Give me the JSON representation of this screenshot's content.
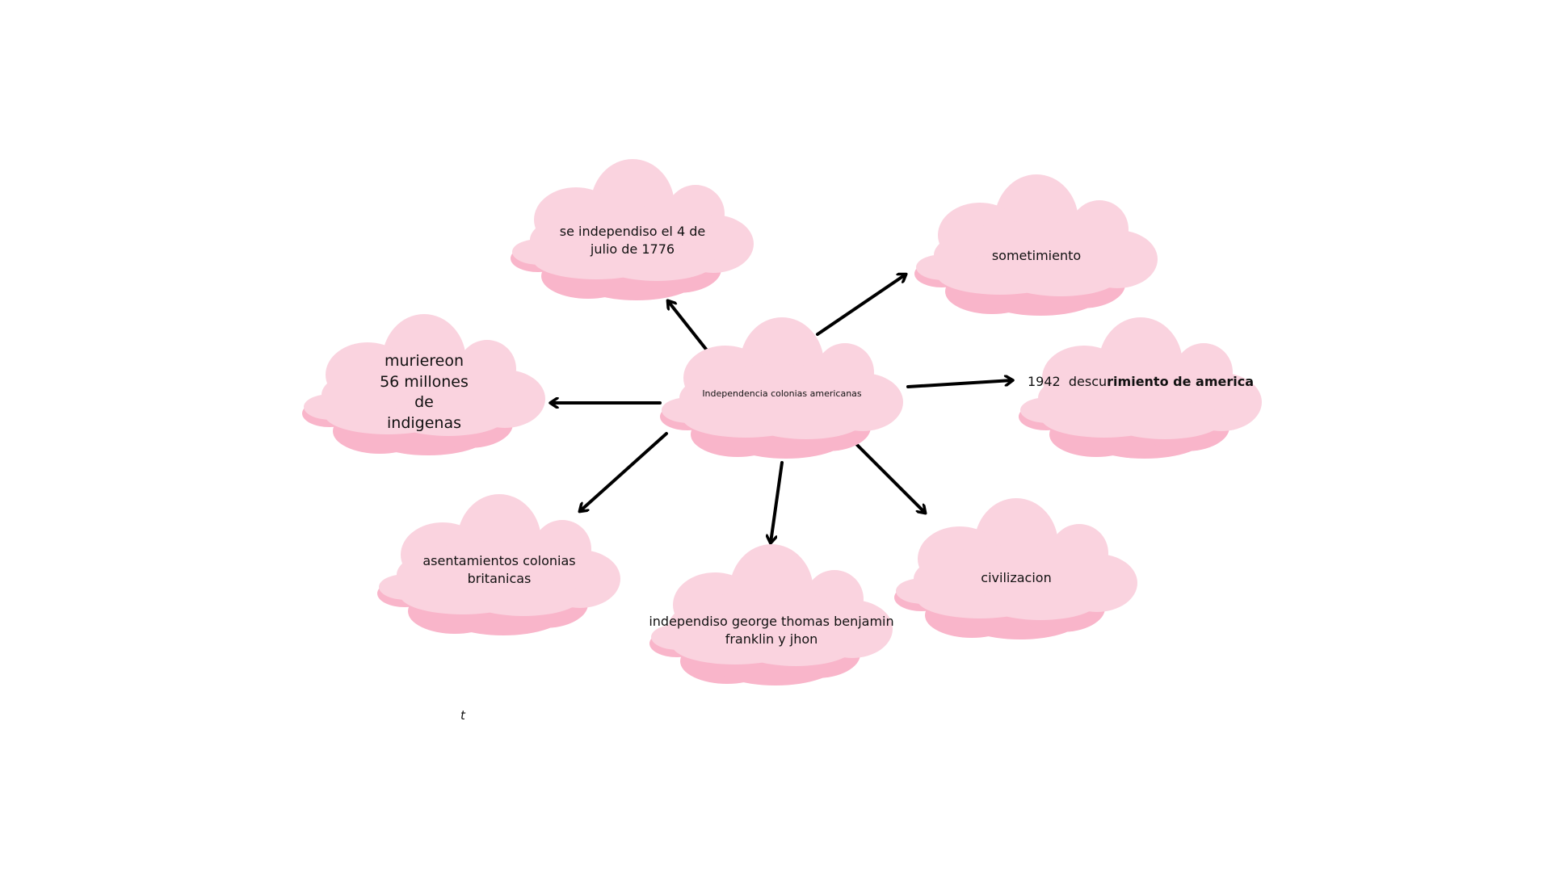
{
  "colors": {
    "cloud_light": "#fad3df",
    "cloud_dark": "#f9b5ca",
    "arrow": "#000000"
  },
  "center": {
    "label": "Independencia colonias americanas"
  },
  "nodes": {
    "independence_date": {
      "label": "se independiso el 4 de julio de 1776"
    },
    "sometimiento": {
      "label": "sometimiento"
    },
    "indigenous_deaths": {
      "label": "muriereon 56 millones de indigenas"
    },
    "discovery": {
      "label_prefix": "1942  descu",
      "label_bold": "rimiento de america"
    },
    "british_settlements": {
      "label": "asentamientos colonias britanicas"
    },
    "founders": {
      "label": "independiso george thomas benjamin franklin y jhon"
    },
    "civilizacion": {
      "label": "civilizacion"
    }
  },
  "stray_text": "t"
}
